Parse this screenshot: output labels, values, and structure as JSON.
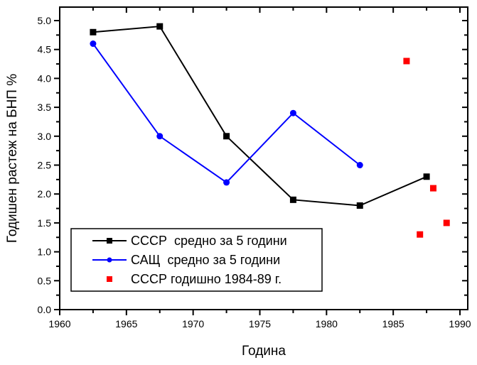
{
  "chart_data": {
    "type": "line",
    "title": "",
    "xlabel": "Година",
    "ylabel": "Годишен растеж на БНП %",
    "xlim": [
      1960,
      1990.6
    ],
    "ylim": [
      0,
      5.22
    ],
    "x_ticks": [
      "1960",
      "1965",
      "1970",
      "1975",
      "1980",
      "1985",
      "1990"
    ],
    "y_ticks": [
      "0.0",
      "0.5",
      "1.0",
      "1.5",
      "2.0",
      "2.5",
      "3.0",
      "3.5",
      "4.0",
      "4.5",
      "5.0"
    ],
    "grid": false,
    "legend_position": "bottom-left",
    "series": [
      {
        "name": "СССР  средно за 5 години",
        "style": "line-square",
        "color": "#000000",
        "x": [
          1962.5,
          1967.5,
          1972.5,
          1977.5,
          1982.5,
          1987.5
        ],
        "y": [
          4.8,
          4.9,
          3.0,
          1.9,
          1.8,
          2.3
        ]
      },
      {
        "name": "САЩ  средно за 5 години",
        "style": "line-circle",
        "color": "#0000ff",
        "x": [
          1962.5,
          1967.5,
          1972.5,
          1977.5,
          1982.5
        ],
        "y": [
          4.6,
          3.0,
          2.2,
          3.4,
          2.5
        ]
      },
      {
        "name": "СССР годишно 1984-89 г.",
        "style": "square",
        "color": "#ff0000",
        "x": [
          1986,
          1987,
          1988,
          1989
        ],
        "y": [
          4.3,
          1.3,
          2.1,
          1.5
        ]
      }
    ]
  }
}
